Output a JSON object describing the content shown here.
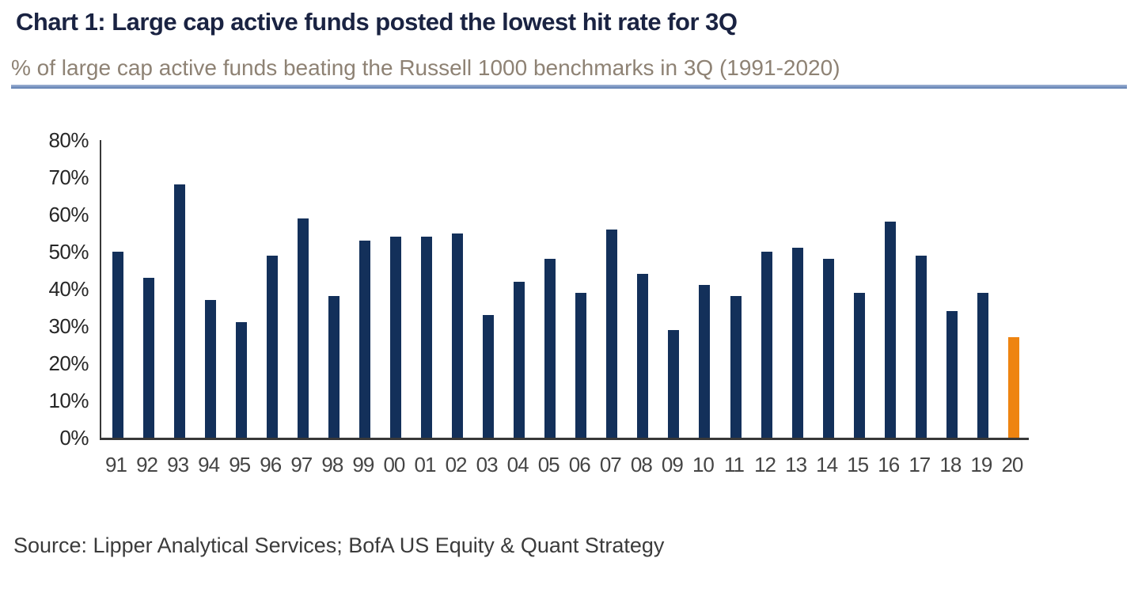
{
  "page": {
    "title": "Chart 1: Large cap active funds posted the lowest hit rate for 3Q",
    "subtitle": "% of large cap active funds beating the Russell 1000 benchmarks in 3Q (1991-2020)",
    "source": "Source: Lipper Analytical Services; BofA US Equity & Quant Strategy"
  },
  "chart_data": {
    "type": "bar",
    "title": "Chart 1: Large cap active funds posted the lowest hit rate for 3Q",
    "subtitle": "% of large cap active funds beating the Russell 1000 benchmarks in 3Q (1991-2020)",
    "source": "Source: Lipper Analytical Services; BofA US Equity & Quant Strategy",
    "categories": [
      "91",
      "92",
      "93",
      "94",
      "95",
      "96",
      "97",
      "98",
      "99",
      "00",
      "01",
      "02",
      "03",
      "04",
      "05",
      "06",
      "07",
      "08",
      "09",
      "10",
      "11",
      "12",
      "13",
      "14",
      "15",
      "16",
      "17",
      "18",
      "19",
      "20"
    ],
    "values": [
      50,
      43,
      68,
      37,
      31,
      49,
      59,
      38,
      53,
      54,
      54,
      55,
      33,
      42,
      48,
      39,
      56,
      44,
      29,
      41,
      38,
      50,
      51,
      48,
      39,
      58,
      49,
      34,
      39,
      27
    ],
    "unit": "%",
    "highlight_category": "20",
    "xlabel": "",
    "ylabel": "",
    "ylim": [
      0,
      80
    ],
    "ytick_step": 10,
    "ytick_labels": [
      "0%",
      "10%",
      "20%",
      "30%",
      "40%",
      "50%",
      "60%",
      "70%",
      "80%"
    ],
    "grid": false,
    "legend": false,
    "colors": {
      "bar": "#13305a",
      "highlight_bar": "#ee8411",
      "title_text": "#1a2342",
      "subtitle_text": "#8e8274",
      "divider": "#5c7db0",
      "axis_line": "#383838"
    }
  }
}
